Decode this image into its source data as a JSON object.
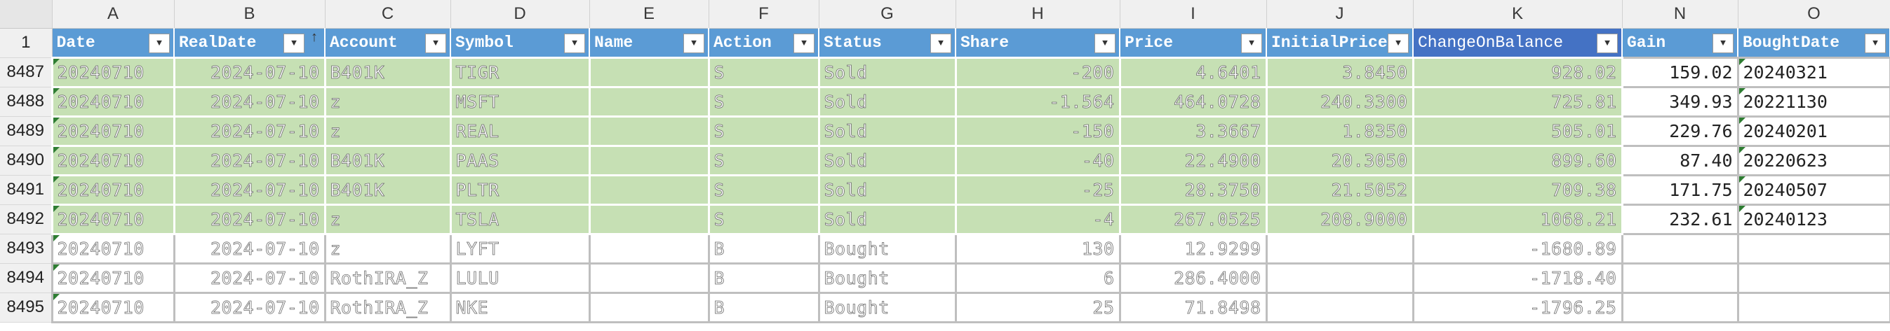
{
  "columns": [
    "A",
    "B",
    "C",
    "D",
    "E",
    "F",
    "G",
    "H",
    "I",
    "J",
    "K",
    "N",
    "O"
  ],
  "header_row_number": "1",
  "headers": [
    "Date",
    "RealDate",
    "Account",
    "Symbol",
    "Name",
    "Action",
    "Status",
    "Share",
    "Price",
    "InitialPrice",
    "ChangeOnBalance",
    "Gain",
    "BoughtDate"
  ],
  "rows": [
    {
      "num": "8487",
      "date": "20240710",
      "realdate": "2024-07-10",
      "account": "B401K",
      "symbol": "TIGR",
      "name": "",
      "action": "S",
      "status": "Sold",
      "share": "-200",
      "price": "4.6401",
      "initial": "3.8450",
      "change": "928.02",
      "gain": "159.02",
      "bought": "20240321"
    },
    {
      "num": "8488",
      "date": "20240710",
      "realdate": "2024-07-10",
      "account": "z",
      "symbol": "MSFT",
      "name": "",
      "action": "S",
      "status": "Sold",
      "share": "-1.564",
      "price": "464.0728",
      "initial": "240.3300",
      "change": "725.81",
      "gain": "349.93",
      "bought": "20221130"
    },
    {
      "num": "8489",
      "date": "20240710",
      "realdate": "2024-07-10",
      "account": "z",
      "symbol": "REAL",
      "name": "",
      "action": "S",
      "status": "Sold",
      "share": "-150",
      "price": "3.3667",
      "initial": "1.8350",
      "change": "505.01",
      "gain": "229.76",
      "bought": "20240201"
    },
    {
      "num": "8490",
      "date": "20240710",
      "realdate": "2024-07-10",
      "account": "B401K",
      "symbol": "PAAS",
      "name": "",
      "action": "S",
      "status": "Sold",
      "share": "-40",
      "price": "22.4900",
      "initial": "20.3050",
      "change": "899.60",
      "gain": "87.40",
      "bought": "20220623"
    },
    {
      "num": "8491",
      "date": "20240710",
      "realdate": "2024-07-10",
      "account": "B401K",
      "symbol": "PLTR",
      "name": "",
      "action": "S",
      "status": "Sold",
      "share": "-25",
      "price": "28.3750",
      "initial": "21.5052",
      "change": "709.38",
      "gain": "171.75",
      "bought": "20240507"
    },
    {
      "num": "8492",
      "date": "20240710",
      "realdate": "2024-07-10",
      "account": "z",
      "symbol": "TSLA",
      "name": "",
      "action": "S",
      "status": "Sold",
      "share": "-4",
      "price": "267.0525",
      "initial": "208.9000",
      "change": "1068.21",
      "gain": "232.61",
      "bought": "20240123"
    },
    {
      "num": "8493",
      "date": "20240710",
      "realdate": "2024-07-10",
      "account": "z",
      "symbol": "LYFT",
      "name": "",
      "action": "B",
      "status": "Bought",
      "share": "130",
      "price": "12.9299",
      "initial": "",
      "change": "-1680.89",
      "gain": "",
      "bought": ""
    },
    {
      "num": "8494",
      "date": "20240710",
      "realdate": "2024-07-10",
      "account": "RothIRA_Z",
      "symbol": "LULU",
      "name": "",
      "action": "B",
      "status": "Bought",
      "share": "6",
      "price": "286.4000",
      "initial": "",
      "change": "-1718.40",
      "gain": "",
      "bought": ""
    },
    {
      "num": "8495",
      "date": "20240710",
      "realdate": "2024-07-10",
      "account": "RothIRA_Z",
      "symbol": "NKE",
      "name": "",
      "action": "B",
      "status": "Bought",
      "share": "25",
      "price": "71.8498",
      "initial": "",
      "change": "-1796.25",
      "gain": "",
      "bought": ""
    }
  ]
}
